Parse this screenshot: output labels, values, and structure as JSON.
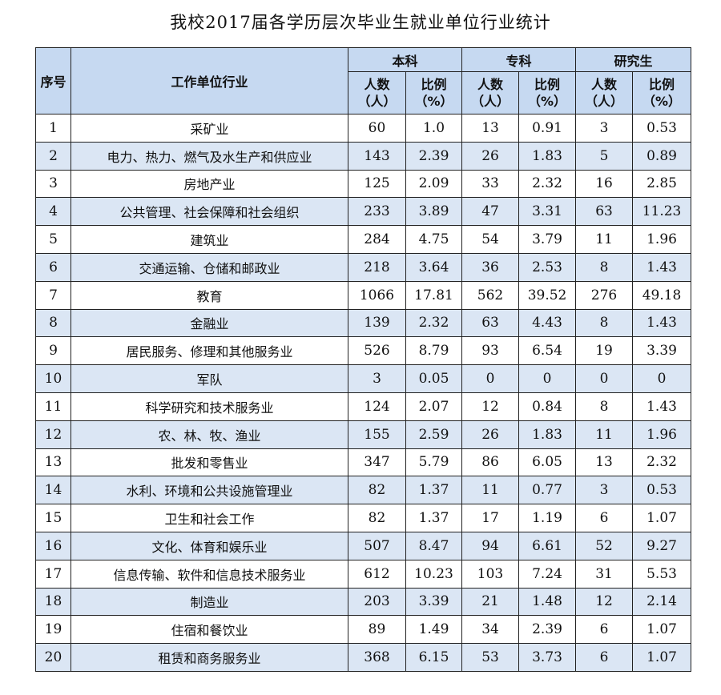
{
  "title": "我校2017届各学历层次毕业生就业单位行业统计",
  "headers": {
    "index": "序号",
    "industry": "工作单位行业",
    "groups": [
      "本科",
      "专科",
      "研究生"
    ],
    "count": "人数（人）",
    "ratio": "比例（%）"
  },
  "rows": [
    [
      "1",
      "采矿业",
      "60",
      "1.0",
      "13",
      "0.91",
      "3",
      "0.53"
    ],
    [
      "2",
      "电力、热力、燃气及水生产和供应业",
      "143",
      "2.39",
      "26",
      "1.83",
      "5",
      "0.89"
    ],
    [
      "3",
      "房地产业",
      "125",
      "2.09",
      "33",
      "2.32",
      "16",
      "2.85"
    ],
    [
      "4",
      "公共管理、社会保障和社会组织",
      "233",
      "3.89",
      "47",
      "3.31",
      "63",
      "11.23"
    ],
    [
      "5",
      "建筑业",
      "284",
      "4.75",
      "54",
      "3.79",
      "11",
      "1.96"
    ],
    [
      "6",
      "交通运输、仓储和邮政业",
      "218",
      "3.64",
      "36",
      "2.53",
      "8",
      "1.43"
    ],
    [
      "7",
      "教育",
      "1066",
      "17.81",
      "562",
      "39.52",
      "276",
      "49.18"
    ],
    [
      "8",
      "金融业",
      "139",
      "2.32",
      "63",
      "4.43",
      "8",
      "1.43"
    ],
    [
      "9",
      "居民服务、修理和其他服务业",
      "526",
      "8.79",
      "93",
      "6.54",
      "19",
      "3.39"
    ],
    [
      "10",
      "军队",
      "3",
      "0.05",
      "0",
      "0",
      "0",
      "0"
    ],
    [
      "11",
      "科学研究和技术服务业",
      "124",
      "2.07",
      "12",
      "0.84",
      "8",
      "1.43"
    ],
    [
      "12",
      "农、林、牧、渔业",
      "155",
      "2.59",
      "26",
      "1.83",
      "11",
      "1.96"
    ],
    [
      "13",
      "批发和零售业",
      "347",
      "5.79",
      "86",
      "6.05",
      "13",
      "2.32"
    ],
    [
      "14",
      "水利、环境和公共设施管理业",
      "82",
      "1.37",
      "11",
      "0.77",
      "3",
      "0.53"
    ],
    [
      "15",
      "卫生和社会工作",
      "82",
      "1.37",
      "17",
      "1.19",
      "6",
      "1.07"
    ],
    [
      "16",
      "文化、体育和娱乐业",
      "507",
      "8.47",
      "94",
      "6.61",
      "52",
      "9.27"
    ],
    [
      "17",
      "信息传输、软件和信息技术服务业",
      "612",
      "10.23",
      "103",
      "7.24",
      "31",
      "5.53"
    ],
    [
      "18",
      "制造业",
      "203",
      "3.39",
      "21",
      "1.48",
      "12",
      "2.14"
    ],
    [
      "19",
      "住宿和餐饮业",
      "89",
      "1.49",
      "34",
      "2.39",
      "6",
      "1.07"
    ],
    [
      "20",
      "租赁和商务服务业",
      "368",
      "6.15",
      "53",
      "3.73",
      "6",
      "1.07"
    ]
  ],
  "colors": {
    "header_bg": "#c6d9f1",
    "alt_row_bg": "#dbe6f4",
    "border": "#222222"
  }
}
